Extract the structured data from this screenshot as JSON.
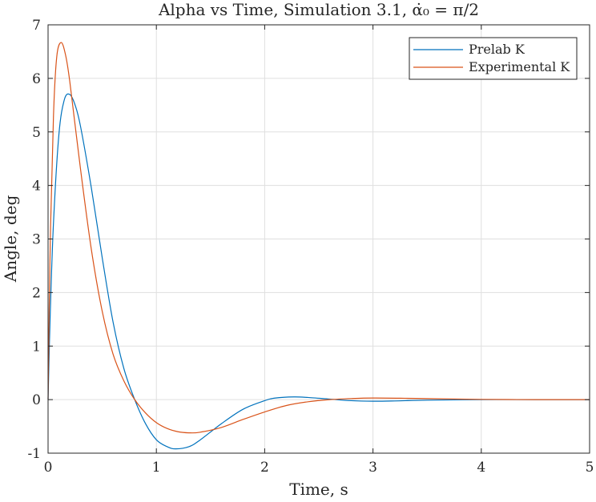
{
  "chart_data": {
    "type": "line",
    "title": "Alpha vs Time, Simulation 3.1, α̇₀ = π/2",
    "xlabel": "Time, s",
    "ylabel": "Angle, deg",
    "xlim": [
      0,
      5
    ],
    "ylim": [
      -1,
      7
    ],
    "xticks": [
      0,
      1,
      2,
      3,
      4,
      5
    ],
    "yticks": [
      -1,
      0,
      1,
      2,
      3,
      4,
      5,
      6,
      7
    ],
    "xtick_labels": [
      "0",
      "1",
      "2",
      "3",
      "4",
      "5"
    ],
    "ytick_labels": [
      "-1",
      "0",
      "1",
      "2",
      "3",
      "4",
      "5",
      "6",
      "7"
    ],
    "grid": true,
    "legend": "top-right",
    "series": [
      {
        "name": "Prelab K",
        "color": "#0072bd",
        "x": [
          0,
          0.02,
          0.05,
          0.1,
          0.15,
          0.2,
          0.25,
          0.3,
          0.4,
          0.5,
          0.6,
          0.7,
          0.8,
          0.9,
          1.0,
          1.1,
          1.18,
          1.3,
          1.4,
          1.6,
          1.8,
          2.0,
          2.1,
          2.27,
          2.4,
          2.6,
          2.8,
          3.0,
          3.2,
          3.5,
          4.0,
          4.5,
          5.0
        ],
        "y": [
          0,
          1.6,
          3.3,
          4.95,
          5.6,
          5.7,
          5.5,
          5.1,
          3.95,
          2.65,
          1.45,
          0.58,
          0.0,
          -0.45,
          -0.75,
          -0.88,
          -0.92,
          -0.88,
          -0.76,
          -0.45,
          -0.18,
          -0.02,
          0.03,
          0.05,
          0.04,
          0.01,
          -0.02,
          -0.03,
          -0.025,
          -0.01,
          0.0,
          0.0,
          0.0
        ]
      },
      {
        "name": "Experimental K",
        "color": "#d95319",
        "x": [
          0,
          0.02,
          0.05,
          0.08,
          0.12,
          0.16,
          0.2,
          0.3,
          0.4,
          0.5,
          0.6,
          0.7,
          0.8,
          0.9,
          1.0,
          1.1,
          1.2,
          1.3,
          1.4,
          1.6,
          1.8,
          2.0,
          2.2,
          2.4,
          2.6,
          2.8,
          3.0,
          3.3,
          3.6,
          4.0,
          4.5,
          5.0
        ],
        "y": [
          0,
          2.9,
          5.3,
          6.4,
          6.67,
          6.45,
          5.95,
          4.3,
          2.8,
          1.65,
          0.85,
          0.35,
          0.0,
          -0.25,
          -0.43,
          -0.54,
          -0.6,
          -0.62,
          -0.61,
          -0.52,
          -0.37,
          -0.23,
          -0.11,
          -0.04,
          0.0,
          0.02,
          0.03,
          0.025,
          0.015,
          0.005,
          0.0,
          0.0
        ]
      }
    ]
  }
}
